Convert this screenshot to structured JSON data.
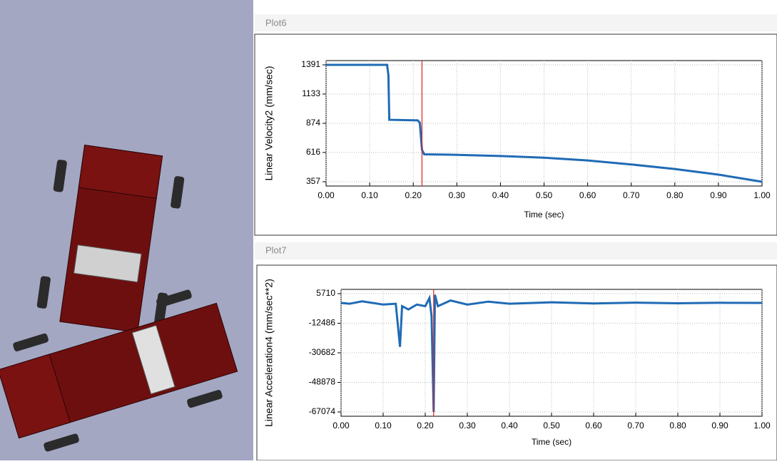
{
  "chart_data": [
    {
      "type": "line",
      "title": "Plot6",
      "xlabel": "Time (sec)",
      "ylabel": "Linear Velocity2 (mm/sec)",
      "x": [
        0,
        0.14,
        0.143,
        0.145,
        0.21,
        0.215,
        0.22,
        0.225,
        0.3,
        0.4,
        0.5,
        0.6,
        0.7,
        0.8,
        0.9,
        1.0
      ],
      "series": [
        {
          "color": "#1f6bb5",
          "values": [
            1391,
            1391,
            1300,
            905,
            900,
            880,
            640,
            600,
            595,
            585,
            570,
            545,
            510,
            470,
            420,
            357
          ]
        }
      ],
      "xlim": [
        0,
        1
      ],
      "ylim": [
        357,
        1391
      ],
      "xticks": [
        {
          "value": 0,
          "label": "0.00"
        },
        {
          "value": 0.1,
          "label": "0.10"
        },
        {
          "value": 0.2,
          "label": "0.20"
        },
        {
          "value": 0.3,
          "label": "0.30"
        },
        {
          "value": 0.4,
          "label": "0.40"
        },
        {
          "value": 0.5,
          "label": "0.50"
        },
        {
          "value": 0.6,
          "label": "0.60"
        },
        {
          "value": 0.7,
          "label": "0.70"
        },
        {
          "value": 0.8,
          "label": "0.80"
        },
        {
          "value": 0.9,
          "label": "0.90"
        },
        {
          "value": 1,
          "label": "1.00"
        }
      ],
      "yticks": [
        357,
        616,
        874,
        1133,
        1391
      ],
      "grid": true,
      "cursor": 0.22,
      "cursor_color": "#e02020"
    },
    {
      "type": "line",
      "title": "Plot7",
      "xlabel": "Time (sec)",
      "ylabel": "Linear Acceleration4 (mm/sec**2)",
      "x": [
        0,
        0.02,
        0.05,
        0.1,
        0.13,
        0.14,
        0.145,
        0.16,
        0.18,
        0.2,
        0.21,
        0.215,
        0.22,
        0.223,
        0.23,
        0.26,
        0.3,
        0.35,
        0.4,
        0.5,
        0.6,
        0.7,
        0.8,
        0.9,
        1.0
      ],
      "series": [
        {
          "color": "#1f6bb5",
          "values": [
            0,
            -500,
            1000,
            -1000,
            -500,
            -27000,
            -2000,
            -4000,
            -1000,
            -2000,
            3000,
            -8000,
            -67074,
            5000,
            -2000,
            1500,
            -1000,
            800,
            -500,
            400,
            -300,
            200,
            -200,
            100,
            0
          ]
        }
      ],
      "xlim": [
        0,
        1
      ],
      "ylim": [
        -67074,
        5710
      ],
      "xticks": [
        {
          "value": 0,
          "label": "0.00"
        },
        {
          "value": 0.1,
          "label": "0.10"
        },
        {
          "value": 0.2,
          "label": "0.20"
        },
        {
          "value": 0.3,
          "label": "0.30"
        },
        {
          "value": 0.4,
          "label": "0.40"
        },
        {
          "value": 0.5,
          "label": "0.50"
        },
        {
          "value": 0.6,
          "label": "0.60"
        },
        {
          "value": 0.7,
          "label": "0.70"
        },
        {
          "value": 0.8,
          "label": "0.80"
        },
        {
          "value": 0.9,
          "label": "0.90"
        },
        {
          "value": 1,
          "label": "1.00"
        }
      ],
      "yticks": [
        -67074,
        -48878,
        -30682,
        -12486,
        5710
      ],
      "grid": true,
      "cursor": 0.22,
      "cursor_color": "#e02020"
    }
  ]
}
